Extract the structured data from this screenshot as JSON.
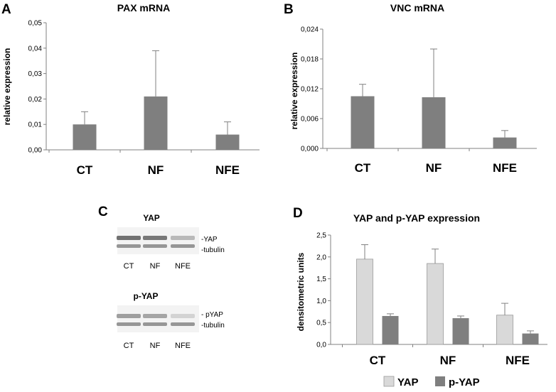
{
  "panels": {
    "A": "A",
    "B": "B",
    "C": "C",
    "D": "D"
  },
  "colors": {
    "bar": "#7f7f7f",
    "bar_light": "#d9d9d9",
    "axis": "#808080"
  },
  "chart_data": [
    {
      "id": "A",
      "type": "bar",
      "title": "PAX mRNA",
      "ylabel": "relative expression",
      "xlabel": "",
      "categories": [
        "CT",
        "NF",
        "NFE"
      ],
      "values": [
        0.01,
        0.021,
        0.006
      ],
      "errors": [
        0.005,
        0.018,
        0.005
      ],
      "ylim": [
        0,
        0.05
      ],
      "yticks": [
        0,
        0.01,
        0.02,
        0.03,
        0.04,
        0.05
      ],
      "ytick_labels": [
        "0,00",
        "0,01",
        "0,02",
        "0,03",
        "0,04",
        "0,05"
      ]
    },
    {
      "id": "B",
      "type": "bar",
      "title": "VNC mRNA",
      "ylabel": "relative expression",
      "xlabel": "",
      "categories": [
        "CT",
        "NF",
        "NFE"
      ],
      "values": [
        0.0105,
        0.0103,
        0.0022
      ],
      "errors": [
        0.0024,
        0.0097,
        0.0014
      ],
      "ylim": [
        0,
        0.024
      ],
      "yticks": [
        0,
        0.006,
        0.012,
        0.018,
        0.024
      ],
      "ytick_labels": [
        "0,000",
        "0,006",
        "0,012",
        "0,018",
        "0,024"
      ]
    },
    {
      "id": "D",
      "type": "bar",
      "title": "YAP and p-YAP expression",
      "ylabel": "densitometric units",
      "xlabel": "",
      "categories": [
        "CT",
        "NF",
        "NFE"
      ],
      "series": [
        {
          "name": "YAP",
          "values": [
            1.95,
            1.85,
            0.67
          ],
          "errors": [
            0.33,
            0.33,
            0.27
          ]
        },
        {
          "name": "p-YAP",
          "values": [
            0.65,
            0.6,
            0.25
          ],
          "errors": [
            0.05,
            0.05,
            0.06
          ]
        }
      ],
      "ylim": [
        0,
        2.5
      ],
      "yticks": [
        0,
        0.5,
        1.0,
        1.5,
        2.0,
        2.5
      ],
      "ytick_labels": [
        "0,0",
        "0,5",
        "1,0",
        "1,5",
        "2,0",
        "2,5"
      ],
      "legend": "bottom"
    }
  ],
  "blot": {
    "yap_title": "YAP",
    "yap_band_label": "-YAP",
    "yap_tubulin_label": "-tubulin",
    "pyap_title": "p-YAP",
    "pyap_band_label": "- pYAP",
    "pyap_tubulin_label": "-tubulin",
    "lanes": [
      "CT",
      "NF",
      "NFE"
    ],
    "yap_band_intensity": [
      0.9,
      0.85,
      0.35
    ],
    "pyap_band_intensity": [
      0.55,
      0.5,
      0.15
    ]
  }
}
